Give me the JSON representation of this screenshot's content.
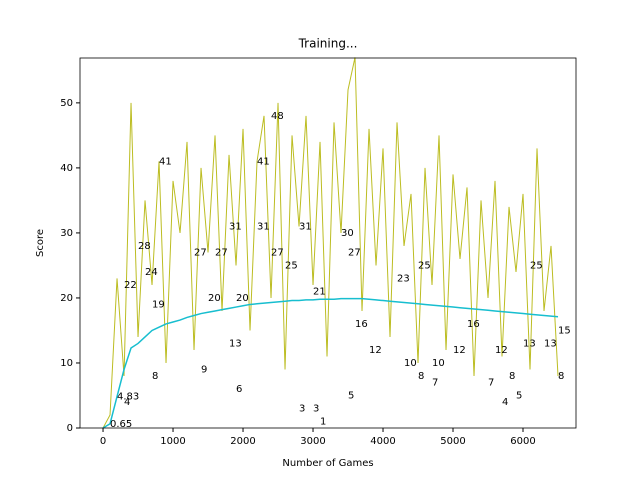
{
  "chart_data": {
    "type": "line",
    "title": "Training...",
    "xlabel": "Number of Games",
    "ylabel": "Score",
    "x": [
      0,
      100,
      200,
      300,
      400,
      500,
      600,
      700,
      800,
      900,
      1000,
      1100,
      1200,
      1300,
      1400,
      1500,
      1600,
      1700,
      1800,
      1900,
      2000,
      2100,
      2200,
      2300,
      2400,
      2500,
      2600,
      2700,
      2800,
      2900,
      3000,
      3100,
      3200,
      3300,
      3400,
      3500,
      3600,
      3700,
      3800,
      3900,
      4000,
      4100,
      4200,
      4300,
      4400,
      4500,
      4600,
      4700,
      4800,
      4900,
      5000,
      5100,
      5200,
      5300,
      5400,
      5500,
      5600,
      5700,
      5800,
      5900,
      6000,
      6100,
      6200,
      6300,
      6400,
      6500
    ],
    "series": [
      {
        "color": "#bcbd22",
        "values": [
          0,
          2,
          23,
          8,
          50,
          14,
          35,
          22,
          41,
          10,
          38,
          30,
          44,
          12,
          40,
          27,
          45,
          18,
          42,
          25,
          46,
          15,
          41,
          48,
          20,
          50,
          9,
          45,
          31,
          48,
          22,
          44,
          11,
          47,
          30,
          52,
          57,
          18,
          46,
          25,
          43,
          14,
          47,
          28,
          36,
          10,
          40,
          22,
          45,
          12,
          39,
          26,
          37,
          8,
          35,
          20,
          38,
          11,
          34,
          24,
          36,
          9,
          43,
          18,
          28,
          8
        ]
      },
      {
        "color": "#17becf",
        "values": [
          0,
          0.65,
          4.83,
          9,
          12.3,
          13,
          14,
          15,
          15.5,
          16,
          16.3,
          16.6,
          17,
          17.3,
          17.6,
          17.8,
          18,
          18.2,
          18.4,
          18.6,
          18.8,
          19,
          19.1,
          19.2,
          19.3,
          19.4,
          19.5,
          19.6,
          19.6,
          19.7,
          19.7,
          19.8,
          19.8,
          19.8,
          19.9,
          19.9,
          19.9,
          19.9,
          19.8,
          19.7,
          19.6,
          19.5,
          19.4,
          19.3,
          19.2,
          19.1,
          19,
          18.9,
          18.8,
          18.7,
          18.6,
          18.5,
          18.4,
          18.3,
          18.2,
          18.1,
          18,
          17.9,
          17.8,
          17.7,
          17.6,
          17.5,
          17.4,
          17.3,
          17.2,
          17.1
        ]
      }
    ],
    "annotations": [
      {
        "x": 2400,
        "y": 48
      },
      {
        "x": 800,
        "y": 41
      },
      {
        "x": 2200,
        "y": 41
      },
      {
        "x": 1800,
        "y": 31
      },
      {
        "x": 2200,
        "y": 31
      },
      {
        "x": 2800,
        "y": 31
      },
      {
        "x": 3400,
        "y": 30
      },
      {
        "x": 500,
        "y": 28
      },
      {
        "x": 1300,
        "y": 27
      },
      {
        "x": 1600,
        "y": 27
      },
      {
        "x": 2400,
        "y": 27
      },
      {
        "x": 3500,
        "y": 27
      },
      {
        "x": 2600,
        "y": 25
      },
      {
        "x": 4500,
        "y": 25
      },
      {
        "x": 6100,
        "y": 25
      },
      {
        "x": 600,
        "y": 24
      },
      {
        "x": 300,
        "y": 22
      },
      {
        "x": 700,
        "y": 19
      },
      {
        "x": 3000,
        "y": 21
      },
      {
        "x": 4200,
        "y": 23
      },
      {
        "x": 1500,
        "y": 20
      },
      {
        "x": 1900,
        "y": 20
      },
      {
        "x": 3600,
        "y": 16
      },
      {
        "x": 5200,
        "y": 16
      },
      {
        "x": 3800,
        "y": 12
      },
      {
        "x": 4300,
        "y": 10
      },
      {
        "x": 4700,
        "y": 10
      },
      {
        "x": 5000,
        "y": 12
      },
      {
        "x": 5600,
        "y": 12
      },
      {
        "x": 6000,
        "y": 13
      },
      {
        "x": 6300,
        "y": 13
      },
      {
        "x": 6500,
        "y": 15
      },
      {
        "x": 1800,
        "y": 13
      },
      {
        "x": 1400,
        "y": 9
      },
      {
        "x": 1900,
        "y": 6
      },
      {
        "x": 3500,
        "y": 5
      },
      {
        "x": 4500,
        "y": 8
      },
      {
        "x": 4700,
        "y": 7
      },
      {
        "x": 5500,
        "y": 7
      },
      {
        "x": 5800,
        "y": 8
      },
      {
        "x": 5900,
        "y": 5
      },
      {
        "x": 5700,
        "y": 4
      },
      {
        "x": 6500,
        "y": 8
      },
      {
        "x": 2800,
        "y": 3
      },
      {
        "x": 3000,
        "y": 3
      },
      {
        "x": 3100,
        "y": 1
      },
      {
        "x": 700,
        "y": 8
      },
      {
        "x": 200,
        "y": 4.83
      },
      {
        "x": 100,
        "y": 0.65
      },
      {
        "x": 300,
        "y": 4
      }
    ],
    "xlim": [
      -329,
      6757
    ],
    "ylim": [
      0,
      56.9
    ],
    "xticks": [
      0,
      1000,
      2000,
      3000,
      4000,
      5000,
      6000
    ],
    "yticks": [
      0,
      10,
      20,
      30,
      40,
      50
    ]
  }
}
